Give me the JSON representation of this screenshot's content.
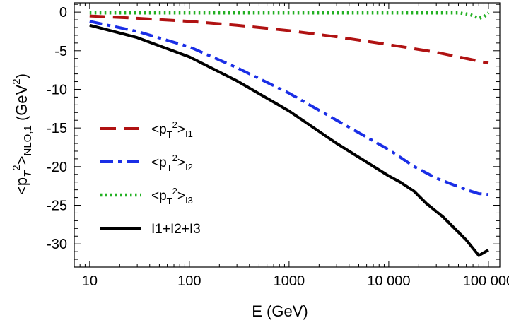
{
  "chart_data": {
    "type": "line",
    "title": "",
    "xlabel": "E (GeV)",
    "ylabel_parts": {
      "main": "<p",
      "sub1": "T",
      "sup1": "2",
      "after": ">",
      "sub2": "NLO,1",
      "unit": " (GeV",
      "sup2": "2",
      "unit_close": ")"
    },
    "x_scale": "log",
    "xlim": [
      7,
      130000
    ],
    "ylim": [
      -33,
      1.2
    ],
    "x_ticks": [
      {
        "value": 10,
        "label": "10"
      },
      {
        "value": 100,
        "label": "100"
      },
      {
        "value": 1000,
        "label": "1000"
      },
      {
        "value": 10000,
        "label": "10 000"
      },
      {
        "value": 100000,
        "label": "100 000"
      }
    ],
    "y_ticks": [
      {
        "value": 0,
        "label": "0"
      },
      {
        "value": -5,
        "label": "-5"
      },
      {
        "value": -10,
        "label": "-10"
      },
      {
        "value": -15,
        "label": "-15"
      },
      {
        "value": -20,
        "label": "-20"
      },
      {
        "value": -25,
        "label": "-25"
      },
      {
        "value": -30,
        "label": "-30"
      }
    ],
    "legend_position": "left",
    "series": [
      {
        "name": "I1",
        "legend": {
          "pre": "<p",
          "sub": "T",
          "sup": "2",
          "post": ">",
          "sub2": "I1"
        },
        "color": "#b01212",
        "style": "dashed",
        "x": [
          10,
          30,
          100,
          300,
          1000,
          3000,
          10000,
          30000,
          100000
        ],
        "y": [
          -0.5,
          -0.8,
          -1.2,
          -1.7,
          -2.4,
          -3.2,
          -4.2,
          -5.2,
          -6.6
        ]
      },
      {
        "name": "I2",
        "legend": {
          "pre": "<p",
          "sub": "T",
          "sup": "2",
          "post": ">",
          "sub2": "I2"
        },
        "color": "#1a2ee6",
        "style": "dashdot",
        "x": [
          10,
          30,
          100,
          300,
          1000,
          3000,
          10000,
          18000,
          30000,
          60000,
          80000,
          100000
        ],
        "y": [
          -1.2,
          -2.5,
          -4.5,
          -7.2,
          -10.5,
          -14.0,
          -17.8,
          -20.0,
          -21.5,
          -23.0,
          -23.5,
          -23.6
        ]
      },
      {
        "name": "I3",
        "legend": {
          "pre": "<p",
          "sub": "T",
          "sup": "2",
          "post": ">",
          "sub2": "I3"
        },
        "color": "#22b022",
        "style": "dotted",
        "x": [
          10,
          100,
          1000,
          10000,
          50000,
          65000,
          80000,
          90000,
          100000
        ],
        "y": [
          -0.1,
          -0.1,
          -0.1,
          -0.1,
          -0.1,
          -0.3,
          -0.8,
          -0.6,
          -0.1
        ]
      },
      {
        "name": "I1+I2+I3",
        "legend": {
          "text": "I1+I2+I3"
        },
        "color": "#000000",
        "style": "solid",
        "x": [
          10,
          30,
          100,
          300,
          1000,
          3000,
          10000,
          13000,
          18000,
          24000,
          35000,
          60000,
          80000,
          100000
        ],
        "y": [
          -1.7,
          -3.3,
          -5.8,
          -8.9,
          -12.8,
          -17.0,
          -21.2,
          -22.0,
          -23.2,
          -24.8,
          -26.5,
          -29.5,
          -31.5,
          -30.8
        ]
      }
    ]
  }
}
